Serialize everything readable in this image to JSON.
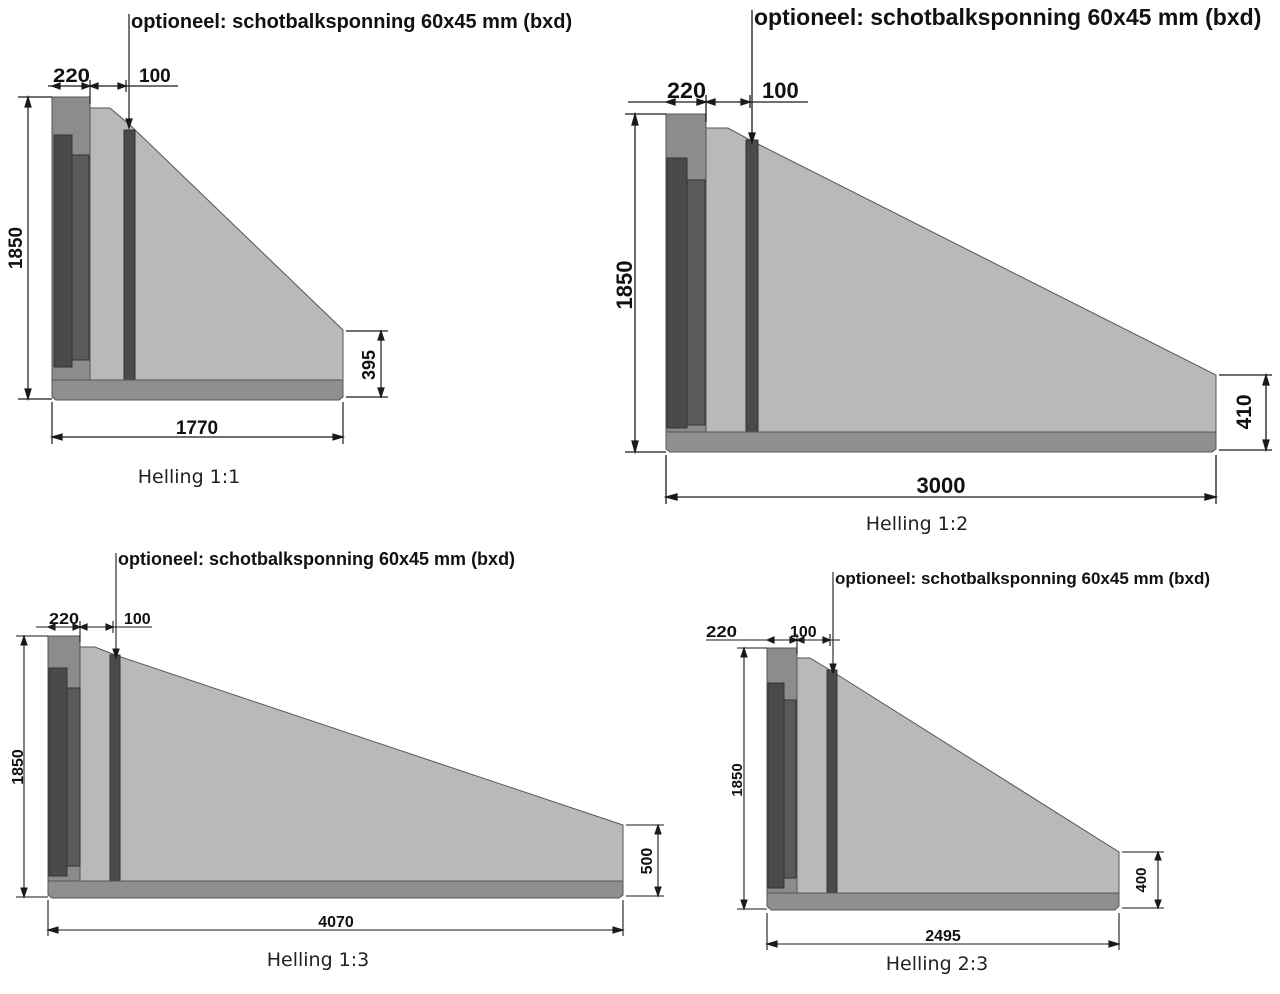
{
  "note": "optioneel: schotbalksponning 60x45 mm (bxd)",
  "drawings": [
    {
      "caption": "Helling 1:1",
      "width": "220",
      "groove": "100",
      "height": "1850",
      "end_height": "395",
      "length": "1770"
    },
    {
      "caption": "Helling 1:2",
      "width": "220",
      "groove": "100",
      "height": "1850",
      "end_height": "410",
      "length": "3000"
    },
    {
      "caption": "Helling 1:3",
      "width": "220",
      "groove": "100",
      "height": "1850",
      "end_height": "500",
      "length": "4070"
    },
    {
      "caption": "Helling 2:3",
      "width": "220",
      "groove": "100",
      "height": "1850",
      "end_height": "400",
      "length": "2495"
    }
  ],
  "colors": {
    "wing": "#b9b9b9",
    "wall": "#8c8c8c",
    "rib": "#4a4a4a",
    "base": "#8f8f8f",
    "line": "#1a1a1a"
  }
}
